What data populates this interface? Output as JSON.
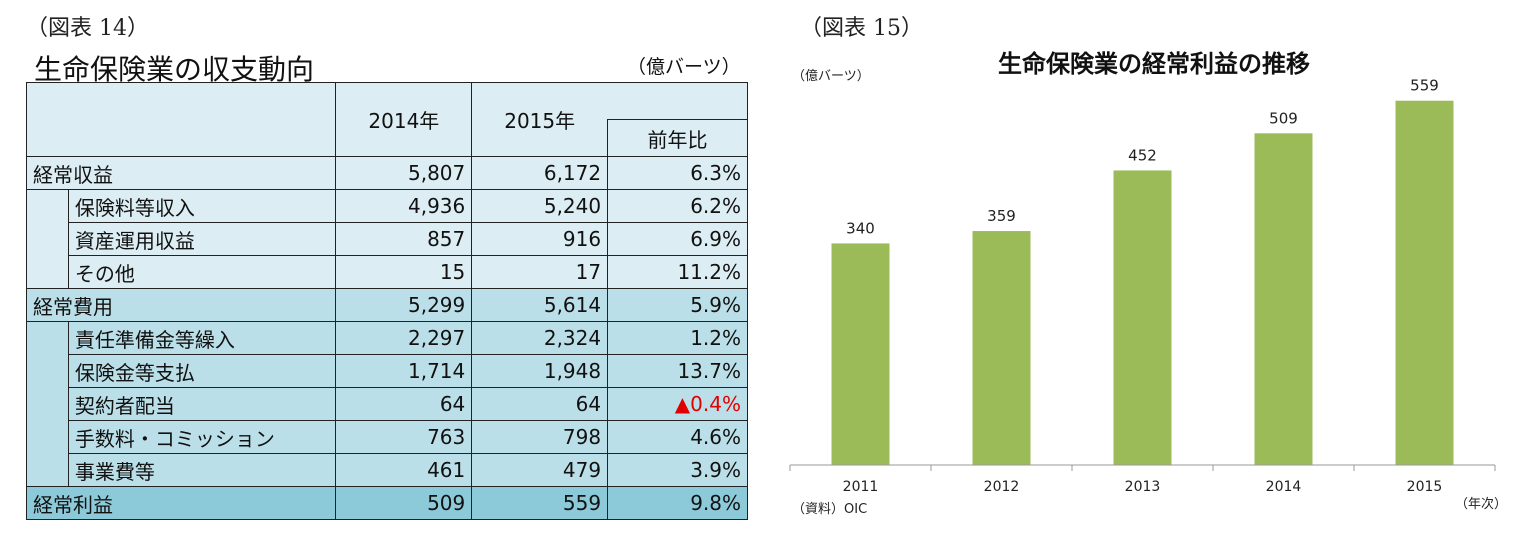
{
  "left": {
    "label": "（図表 14）",
    "title": "生命保険業の収支動向",
    "unit": "（億バーツ）",
    "headers": {
      "y2014": "2014年",
      "y2015": "2015年",
      "yoy": "前年比"
    },
    "rows": [
      {
        "label": "経常収益",
        "v2014": "5,807",
        "v2015": "6,172",
        "yoy": "6.3%",
        "level": 0,
        "color": "light"
      },
      {
        "label": "保険料等収入",
        "v2014": "4,936",
        "v2015": "5,240",
        "yoy": "6.2%",
        "level": 1,
        "color": "light"
      },
      {
        "label": "資産運用収益",
        "v2014": "857",
        "v2015": "916",
        "yoy": "6.9%",
        "level": 1,
        "color": "light"
      },
      {
        "label": "その他",
        "v2014": "15",
        "v2015": "17",
        "yoy": "11.2%",
        "level": 1,
        "color": "light"
      },
      {
        "label": "経常費用",
        "v2014": "5,299",
        "v2015": "5,614",
        "yoy": "5.9%",
        "level": 0,
        "color": "mid"
      },
      {
        "label": "責任準備金等繰入",
        "v2014": "2,297",
        "v2015": "2,324",
        "yoy": "1.2%",
        "level": 1,
        "color": "mid"
      },
      {
        "label": "保険金等支払",
        "v2014": "1,714",
        "v2015": "1,948",
        "yoy": "13.7%",
        "level": 1,
        "color": "mid"
      },
      {
        "label": "契約者配当",
        "v2014": "64",
        "v2015": "64",
        "yoy": "▲0.4%",
        "level": 1,
        "color": "mid",
        "negative": true
      },
      {
        "label": "手数料・コミッション",
        "v2014": "763",
        "v2015": "798",
        "yoy": "4.6%",
        "level": 1,
        "color": "mid"
      },
      {
        "label": "事業費等",
        "v2014": "461",
        "v2015": "479",
        "yoy": "3.9%",
        "level": 1,
        "color": "mid"
      },
      {
        "label": "経常利益",
        "v2014": "509",
        "v2015": "559",
        "yoy": "9.8%",
        "level": 0,
        "color": "dark"
      }
    ]
  },
  "right": {
    "label": "（図表 15）",
    "unit": "（億バーツ）",
    "source": "（資料）OIC",
    "xunit": "（年次）"
  },
  "chart_data": {
    "type": "bar",
    "title": "生命保険業の経常利益の推移",
    "categories": [
      "2011",
      "2012",
      "2013",
      "2014",
      "2015"
    ],
    "values": [
      340,
      359,
      452,
      509,
      559
    ],
    "ylabel": "（億バーツ）",
    "xlabel": "（年次）",
    "ylim": [
      0,
      600
    ],
    "grid": false,
    "data_labels": true,
    "colors": {
      "bar": "#9bbb59",
      "neg_text": "#e10000"
    }
  }
}
